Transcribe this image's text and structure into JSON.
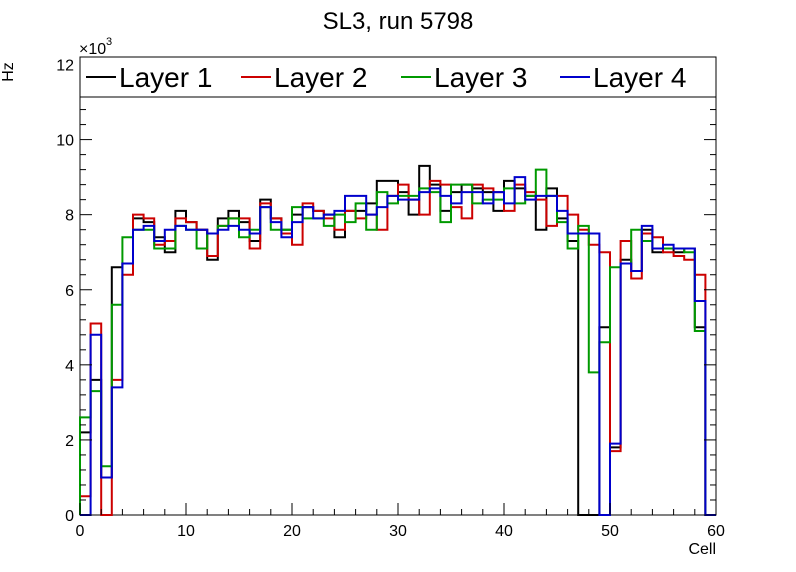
{
  "chart_data": {
    "type": "line",
    "title": "SL3, run 5798",
    "xlabel": "Cell",
    "ylabel": "Hz",
    "y_multiplier": "×10",
    "y_multiplier_exp": "3",
    "xlim": [
      0,
      60
    ],
    "ylim": [
      0,
      12.2
    ],
    "x_ticks": [
      0,
      10,
      20,
      30,
      40,
      50,
      60
    ],
    "y_ticks": [
      0,
      2,
      4,
      6,
      8,
      10,
      12
    ],
    "legend_position": "top",
    "bin_edges_start": 0,
    "bin_width": 1,
    "series": [
      {
        "name": "Layer 1",
        "color": "#000000",
        "values": [
          2.2,
          3.6,
          1.0,
          6.6,
          6.7,
          7.9,
          7.8,
          7.4,
          7.0,
          8.1,
          7.8,
          7.6,
          6.8,
          7.9,
          8.1,
          7.8,
          7.3,
          8.4,
          7.9,
          7.6,
          8.0,
          8.2,
          8.1,
          8.0,
          7.4,
          8.1,
          8.1,
          8.3,
          8.9,
          8.9,
          8.6,
          8.0,
          9.3,
          8.8,
          8.1,
          8.6,
          8.8,
          8.7,
          8.6,
          8.1,
          8.9,
          8.7,
          8.5,
          7.6,
          8.7,
          7.9,
          7.3,
          0.0,
          0.0,
          5.0,
          1.8,
          6.8,
          6.5,
          7.6,
          7.0,
          7.1,
          7.0,
          7.1,
          5.0,
          0.0
        ]
      },
      {
        "name": "Layer 2",
        "color": "#cc0000",
        "values": [
          0.5,
          5.1,
          0.0,
          3.6,
          6.4,
          8.0,
          7.9,
          7.2,
          7.3,
          7.9,
          7.8,
          7.6,
          6.9,
          7.7,
          7.9,
          7.9,
          7.1,
          8.3,
          7.9,
          7.5,
          7.2,
          8.3,
          8.1,
          7.9,
          7.6,
          8.1,
          7.9,
          8.0,
          7.6,
          8.5,
          8.8,
          8.4,
          8.0,
          8.9,
          8.8,
          8.2,
          7.9,
          8.8,
          8.7,
          8.6,
          8.1,
          8.8,
          8.6,
          8.4,
          7.7,
          8.5,
          8.0,
          7.6,
          7.2,
          7.0,
          1.7,
          7.3,
          6.3,
          7.5,
          7.4,
          7.0,
          6.9,
          6.8,
          6.4,
          0.0
        ]
      },
      {
        "name": "Layer 3",
        "color": "#009900",
        "values": [
          2.6,
          3.3,
          1.3,
          5.6,
          7.4,
          7.6,
          7.6,
          7.1,
          7.1,
          7.7,
          7.6,
          7.1,
          7.5,
          7.7,
          7.9,
          7.4,
          7.6,
          8.2,
          7.6,
          7.6,
          8.2,
          7.9,
          7.9,
          7.7,
          8.0,
          7.8,
          8.3,
          7.6,
          8.6,
          8.3,
          8.5,
          8.5,
          8.7,
          8.6,
          7.8,
          8.8,
          8.8,
          8.3,
          8.4,
          8.4,
          8.7,
          8.3,
          8.5,
          9.2,
          8.5,
          7.8,
          7.1,
          7.7,
          3.8,
          4.6,
          6.6,
          6.7,
          7.6,
          7.3,
          7.1,
          7.1,
          7.1,
          7.0,
          4.9,
          0.0
        ]
      },
      {
        "name": "Layer 4",
        "color": "#0000cc",
        "values": [
          0.0,
          4.8,
          1.0,
          3.4,
          6.7,
          7.6,
          7.7,
          7.3,
          7.6,
          7.7,
          7.6,
          7.6,
          7.5,
          7.6,
          7.7,
          7.6,
          7.5,
          8.2,
          7.8,
          7.4,
          7.8,
          8.2,
          7.9,
          8.0,
          8.1,
          8.5,
          8.5,
          8.0,
          8.2,
          8.5,
          8.4,
          8.4,
          8.6,
          8.7,
          8.5,
          8.3,
          8.6,
          8.6,
          8.3,
          8.6,
          8.3,
          9.0,
          8.4,
          8.5,
          8.5,
          8.1,
          7.5,
          7.5,
          7.5,
          0.0,
          1.9,
          6.7,
          6.5,
          7.7,
          7.1,
          7.2,
          7.1,
          7.1,
          5.7,
          0.0
        ]
      }
    ]
  }
}
